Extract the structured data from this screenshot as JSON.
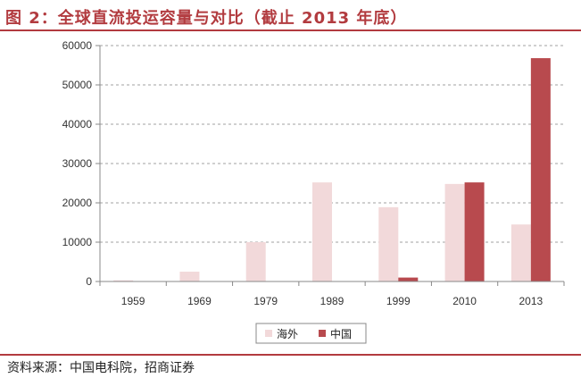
{
  "title": "图 2：全球直流投运容量与对比（截止 2013 年底）",
  "source": "资料来源：中国电科院，招商证券",
  "colors": {
    "accent": "#b23b3f",
    "overseas": "#f2d9da",
    "china": "#b84a4e"
  },
  "chart_data": {
    "type": "bar",
    "categories": [
      "1959",
      "1969",
      "1979",
      "1989",
      "1999",
      "2010",
      "2013"
    ],
    "series": [
      {
        "name": "海外",
        "values": [
          300,
          2500,
          10000,
          25200,
          18900,
          24800,
          14500
        ]
      },
      {
        "name": "中国",
        "values": [
          0,
          0,
          0,
          0,
          1000,
          25200,
          56800
        ]
      }
    ],
    "ylim": [
      0,
      60000
    ],
    "yticks": [
      "0",
      "10000",
      "20000",
      "30000",
      "40000",
      "50000",
      "60000"
    ],
    "grid": true,
    "legend": "bottom"
  }
}
